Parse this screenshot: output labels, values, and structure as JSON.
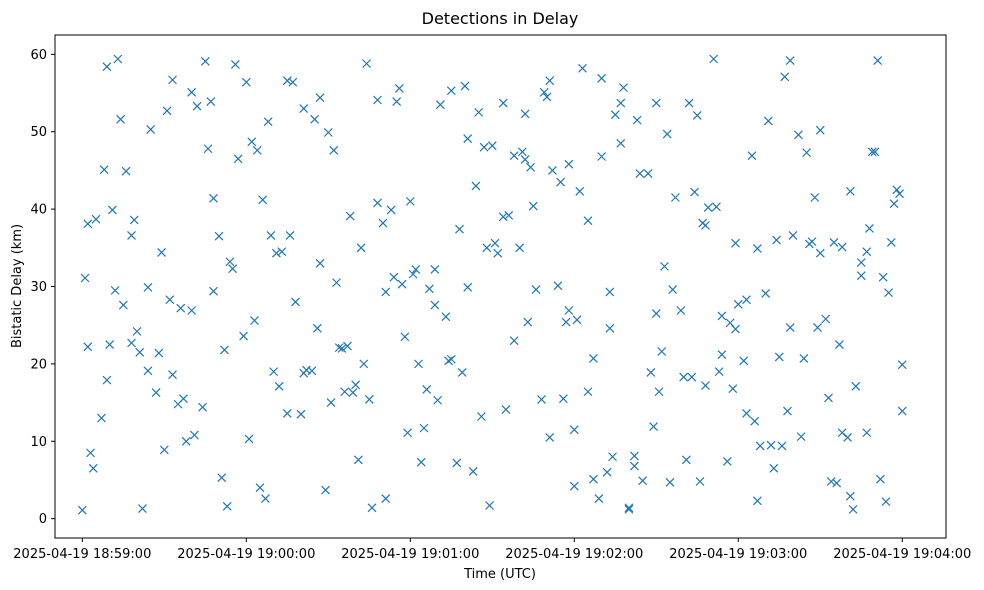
{
  "chart_data": {
    "type": "scatter",
    "title": "Detections in Delay",
    "xlabel": "Time (UTC)",
    "ylabel": "Bistatic Delay (km)",
    "marker": "x",
    "marker_color": "#1f77b4",
    "grid": false,
    "x_unit": "time",
    "xlim": [
      "2025-04-19 18:58:50",
      "2025-04-19 19:04:16"
    ],
    "ylim": [
      -2.5,
      62.5
    ],
    "x_ticks": [
      "2025-04-19 18:59:00",
      "2025-04-19 19:00:00",
      "2025-04-19 19:01:00",
      "2025-04-19 19:02:00",
      "2025-04-19 19:03:00",
      "2025-04-19 19:04:00"
    ],
    "x_tick_labels": [
      "2025-04-19 18:59:00",
      "2025-04-19 19:00:00",
      "2025-04-19 19:01:00",
      "2025-04-19 19:02:00",
      "2025-04-19 19:03:00",
      "2025-04-19 19:04:00"
    ],
    "y_ticks": [
      0,
      10,
      20,
      30,
      40,
      50,
      60
    ],
    "y_tick_labels": [
      "0",
      "10",
      "20",
      "30",
      "40",
      "50",
      "60"
    ],
    "x": [
      "2025-04-19 18:59:00",
      "2025-04-19 18:59:01",
      "2025-04-19 18:59:02",
      "2025-04-19 18:59:02",
      "2025-04-19 18:59:03",
      "2025-04-19 18:59:04",
      "2025-04-19 18:59:05",
      "2025-04-19 18:59:07",
      "2025-04-19 18:59:08",
      "2025-04-19 18:59:09",
      "2025-04-19 18:59:09",
      "2025-04-19 18:59:10",
      "2025-04-19 18:59:11",
      "2025-04-19 18:59:12",
      "2025-04-19 18:59:13",
      "2025-04-19 18:59:14",
      "2025-04-19 18:59:15",
      "2025-04-19 18:59:16",
      "2025-04-19 18:59:18",
      "2025-04-19 18:59:18",
      "2025-04-19 18:59:19",
      "2025-04-19 18:59:20",
      "2025-04-19 18:59:21",
      "2025-04-19 18:59:22",
      "2025-04-19 18:59:24",
      "2025-04-19 18:59:24",
      "2025-04-19 18:59:25",
      "2025-04-19 18:59:27",
      "2025-04-19 18:59:28",
      "2025-04-19 18:59:29",
      "2025-04-19 18:59:30",
      "2025-04-19 18:59:31",
      "2025-04-19 18:59:32",
      "2025-04-19 18:59:33",
      "2025-04-19 18:59:33",
      "2025-04-19 18:59:35",
      "2025-04-19 18:59:36",
      "2025-04-19 18:59:37",
      "2025-04-19 18:59:38",
      "2025-04-19 18:59:40",
      "2025-04-19 18:59:40",
      "2025-04-19 18:59:41",
      "2025-04-19 18:59:42",
      "2025-04-19 18:59:44",
      "2025-04-19 18:59:45",
      "2025-04-19 18:59:46",
      "2025-04-19 18:59:47",
      "2025-04-19 18:59:48",
      "2025-04-19 18:59:48",
      "2025-04-19 18:59:50",
      "2025-04-19 18:59:51",
      "2025-04-19 18:59:52",
      "2025-04-19 18:59:53",
      "2025-04-19 18:59:54",
      "2025-04-19 18:59:55",
      "2025-04-19 18:59:56",
      "2025-04-19 18:59:57",
      "2025-04-19 18:59:59",
      "2025-04-19 19:00:00",
      "2025-04-19 19:00:01",
      "2025-04-19 19:00:02",
      "2025-04-19 19:00:03",
      "2025-04-19 19:00:04",
      "2025-04-19 19:00:05",
      "2025-04-19 19:00:06",
      "2025-04-19 19:00:07",
      "2025-04-19 19:00:08",
      "2025-04-19 19:00:09",
      "2025-04-19 19:00:10",
      "2025-04-19 19:00:11",
      "2025-04-19 19:00:12",
      "2025-04-19 19:00:13",
      "2025-04-19 19:00:15",
      "2025-04-19 19:00:15",
      "2025-04-19 19:00:16",
      "2025-04-19 19:00:17",
      "2025-04-19 19:00:18",
      "2025-04-19 19:00:20",
      "2025-04-19 19:00:21",
      "2025-04-19 19:00:21",
      "2025-04-19 19:00:22",
      "2025-04-19 19:00:24",
      "2025-04-19 19:00:25",
      "2025-04-19 19:00:26",
      "2025-04-19 19:00:27",
      "2025-04-19 19:00:27",
      "2025-04-19 19:00:29",
      "2025-04-19 19:00:30",
      "2025-04-19 19:00:31",
      "2025-04-19 19:00:32",
      "2025-04-19 19:00:33",
      "2025-04-19 19:00:34",
      "2025-04-19 19:00:35",
      "2025-04-19 19:00:36",
      "2025-04-19 19:00:37",
      "2025-04-19 19:00:38",
      "2025-04-19 19:00:39",
      "2025-04-19 19:00:40",
      "2025-04-19 19:00:41",
      "2025-04-19 19:00:42",
      "2025-04-19 19:00:43",
      "2025-04-19 19:00:44",
      "2025-04-19 19:00:45",
      "2025-04-19 19:00:46",
      "2025-04-19 19:00:48",
      "2025-04-19 19:00:48",
      "2025-04-19 19:00:50",
      "2025-04-19 19:00:51",
      "2025-04-19 19:00:51",
      "2025-04-19 19:00:53",
      "2025-04-19 19:00:54",
      "2025-04-19 19:00:55",
      "2025-04-19 19:00:56",
      "2025-04-19 19:00:57",
      "2025-04-19 19:00:58",
      "2025-04-19 19:00:59",
      "2025-04-19 19:01:00",
      "2025-04-19 19:01:01",
      "2025-04-19 19:01:02",
      "2025-04-19 19:01:03",
      "2025-04-19 19:01:04",
      "2025-04-19 19:01:05",
      "2025-04-19 19:01:06",
      "2025-04-19 19:01:07",
      "2025-04-19 19:01:09",
      "2025-04-19 19:01:09",
      "2025-04-19 19:01:10",
      "2025-04-19 19:01:11",
      "2025-04-19 19:01:13",
      "2025-04-19 19:01:14",
      "2025-04-19 19:01:15",
      "2025-04-19 19:01:15",
      "2025-04-19 19:01:17",
      "2025-04-19 19:01:18",
      "2025-04-19 19:01:19",
      "2025-04-19 19:01:20",
      "2025-04-19 19:01:21",
      "2025-04-19 19:01:21",
      "2025-04-19 19:01:23",
      "2025-04-19 19:01:24",
      "2025-04-19 19:01:25",
      "2025-04-19 19:01:26",
      "2025-04-19 19:01:27",
      "2025-04-19 19:01:28",
      "2025-04-19 19:01:29",
      "2025-04-19 19:01:30",
      "2025-04-19 19:01:31",
      "2025-04-19 19:01:32",
      "2025-04-19 19:01:34",
      "2025-04-19 19:01:34",
      "2025-04-19 19:01:35",
      "2025-04-19 19:01:36",
      "2025-04-19 19:01:38",
      "2025-04-19 19:01:38",
      "2025-04-19 19:01:40",
      "2025-04-19 19:01:41",
      "2025-04-19 19:01:42",
      "2025-04-19 19:01:42",
      "2025-04-19 19:01:43",
      "2025-04-19 19:01:44",
      "2025-04-19 19:01:45",
      "2025-04-19 19:01:46",
      "2025-04-19 19:01:48",
      "2025-04-19 19:01:49",
      "2025-04-19 19:01:50",
      "2025-04-19 19:01:51",
      "2025-04-19 19:01:51",
      "2025-04-19 19:01:52",
      "2025-04-19 19:01:54",
      "2025-04-19 19:01:55",
      "2025-04-19 19:01:56",
      "2025-04-19 19:01:57",
      "2025-04-19 19:01:58",
      "2025-04-19 19:01:58",
      "2025-04-19 19:02:00",
      "2025-04-19 19:02:00",
      "2025-04-19 19:02:01",
      "2025-04-19 19:02:02",
      "2025-04-19 19:02:03",
      "2025-04-19 19:02:05",
      "2025-04-19 19:02:05",
      "2025-04-19 19:02:07",
      "2025-04-19 19:02:07",
      "2025-04-19 19:02:09",
      "2025-04-19 19:02:10",
      "2025-04-19 19:02:10",
      "2025-04-19 19:02:12",
      "2025-04-19 19:02:13",
      "2025-04-19 19:02:13",
      "2025-04-19 19:02:14",
      "2025-04-19 19:02:15",
      "2025-04-19 19:02:17",
      "2025-04-19 19:02:17",
      "2025-04-19 19:02:18",
      "2025-04-19 19:02:20",
      "2025-04-19 19:02:20",
      "2025-04-19 19:02:22",
      "2025-04-19 19:02:22",
      "2025-04-19 19:02:23",
      "2025-04-19 19:02:24",
      "2025-04-19 19:02:25",
      "2025-04-19 19:02:27",
      "2025-04-19 19:02:28",
      "2025-04-19 19:02:29",
      "2025-04-19 19:02:30",
      "2025-04-19 19:02:30",
      "2025-04-19 19:02:31",
      "2025-04-19 19:02:32",
      "2025-04-19 19:02:33",
      "2025-04-19 19:02:34",
      "2025-04-19 19:02:35",
      "2025-04-19 19:02:36",
      "2025-04-19 19:02:37",
      "2025-04-19 19:02:39",
      "2025-04-19 19:02:40",
      "2025-04-19 19:02:41",
      "2025-04-19 19:02:42",
      "2025-04-19 19:02:43",
      "2025-04-19 19:02:44",
      "2025-04-19 19:02:45",
      "2025-04-19 19:02:46",
      "2025-04-19 19:02:47",
      "2025-04-19 19:02:48",
      "2025-04-19 19:02:48",
      "2025-04-19 19:02:49",
      "2025-04-19 19:02:51",
      "2025-04-19 19:02:52",
      "2025-04-19 19:02:53",
      "2025-04-19 19:02:54",
      "2025-04-19 19:02:54",
      "2025-04-19 19:02:56",
      "2025-04-19 19:02:57",
      "2025-04-19 19:02:58",
      "2025-04-19 19:02:59",
      "2025-04-19 19:02:59",
      "2025-04-19 19:03:00",
      "2025-04-19 19:03:02",
      "2025-04-19 19:03:03",
      "2025-04-19 19:03:03",
      "2025-04-19 19:03:05",
      "2025-04-19 19:03:06",
      "2025-04-19 19:03:07",
      "2025-04-19 19:03:07",
      "2025-04-19 19:03:08",
      "2025-04-19 19:03:10",
      "2025-04-19 19:03:11",
      "2025-04-19 19:03:12",
      "2025-04-19 19:03:13",
      "2025-04-19 19:03:14",
      "2025-04-19 19:03:15",
      "2025-04-19 19:03:16",
      "2025-04-19 19:03:17",
      "2025-04-19 19:03:18",
      "2025-04-19 19:03:19",
      "2025-04-19 19:03:19",
      "2025-04-19 19:03:20",
      "2025-04-19 19:03:22",
      "2025-04-19 19:03:23",
      "2025-04-19 19:03:24",
      "2025-04-19 19:03:25",
      "2025-04-19 19:03:26",
      "2025-04-19 19:03:27",
      "2025-04-19 19:03:28",
      "2025-04-19 19:03:29",
      "2025-04-19 19:03:30",
      "2025-04-19 19:03:30",
      "2025-04-19 19:03:32",
      "2025-04-19 19:03:33",
      "2025-04-19 19:03:34",
      "2025-04-19 19:03:35",
      "2025-04-19 19:03:36",
      "2025-04-19 19:03:37",
      "2025-04-19 19:03:38",
      "2025-04-19 19:03:38",
      "2025-04-19 19:03:40",
      "2025-04-19 19:03:41",
      "2025-04-19 19:03:41",
      "2025-04-19 19:03:42",
      "2025-04-19 19:03:43",
      "2025-04-19 19:03:45",
      "2025-04-19 19:03:45",
      "2025-04-19 19:03:47",
      "2025-04-19 19:03:47",
      "2025-04-19 19:03:48",
      "2025-04-19 19:03:49",
      "2025-04-19 19:03:50",
      "2025-04-19 19:03:51",
      "2025-04-19 19:03:52",
      "2025-04-19 19:03:53",
      "2025-04-19 19:03:54",
      "2025-04-19 19:03:55",
      "2025-04-19 19:03:56",
      "2025-04-19 19:03:57",
      "2025-04-19 19:03:58",
      "2025-04-19 19:03:59",
      "2025-04-19 19:04:00",
      "2025-04-19 19:04:00"
    ],
    "y": [
      1.1,
      31.1,
      22.2,
      38.1,
      8.5,
      6.5,
      38.7,
      13.0,
      45.1,
      58.4,
      17.9,
      22.5,
      39.9,
      29.5,
      59.4,
      51.6,
      27.6,
      44.9,
      36.6,
      22.7,
      38.6,
      24.2,
      21.5,
      1.3,
      19.1,
      29.9,
      50.3,
      16.3,
      21.4,
      34.4,
      8.9,
      52.7,
      28.3,
      18.6,
      56.7,
      14.8,
      27.2,
      15.5,
      10.0,
      55.1,
      26.9,
      10.8,
      53.3,
      14.4,
      59.1,
      47.8,
      53.9,
      41.4,
      29.4,
      36.5,
      5.3,
      21.8,
      1.6,
      33.2,
      32.3,
      58.7,
      46.5,
      23.6,
      56.4,
      10.3,
      48.7,
      25.6,
      47.6,
      4.0,
      41.2,
      2.6,
      51.3,
      36.6,
      19.0,
      34.3,
      17.1,
      34.5,
      13.6,
      56.6,
      36.6,
      56.4,
      28.0,
      13.5,
      53.0,
      18.8,
      19.2,
      19.1,
      51.6,
      24.6,
      54.4,
      33.0,
      3.7,
      49.9,
      15.0,
      47.6,
      30.5,
      22.1,
      22.0,
      16.4,
      22.3,
      39.1,
      16.3,
      17.3,
      7.6,
      35.0,
      20.0,
      58.8,
      15.4,
      1.4,
      54.1,
      40.8,
      38.2,
      2.6,
      29.3,
      39.9,
      31.2,
      53.9,
      55.6,
      30.3,
      23.5,
      11.1,
      41.0,
      31.6,
      32.2,
      20.0,
      7.3,
      11.7,
      16.7,
      29.7,
      32.2,
      27.6,
      15.3,
      53.5,
      26.1,
      20.4,
      20.6,
      55.3,
      7.2,
      37.4,
      18.9,
      55.9,
      49.1,
      29.9,
      6.1,
      43.0,
      52.5,
      13.2,
      48.0,
      35.0,
      1.7,
      48.2,
      35.6,
      34.3,
      39.0,
      53.7,
      14.1,
      39.2,
      23.0,
      46.9,
      35.0,
      47.4,
      52.3,
      46.4,
      25.4,
      45.4,
      40.4,
      29.6,
      15.4,
      55.1,
      54.5,
      10.5,
      56.6,
      45.0,
      30.1,
      43.5,
      15.5,
      25.4,
      26.9,
      45.8,
      11.5,
      4.2,
      25.7,
      42.3,
      58.2,
      16.4,
      38.5,
      20.7,
      5.1,
      2.6,
      56.9,
      46.8,
      6.0,
      24.6,
      29.3,
      8.0,
      52.2,
      53.7,
      48.5,
      55.7,
      1.2,
      1.4,
      8.1,
      6.8,
      51.5,
      44.6,
      4.9,
      44.6,
      18.9,
      11.9,
      53.7,
      26.5,
      16.4,
      21.6,
      32.6,
      49.7,
      4.7,
      29.6,
      41.5,
      26.9,
      18.3,
      7.6,
      53.7,
      18.3,
      42.2,
      52.1,
      4.8,
      38.2,
      37.9,
      17.2,
      40.2,
      59.4,
      40.3,
      19.0,
      21.2,
      26.2,
      7.4,
      25.3,
      16.8,
      24.5,
      35.6,
      27.7,
      20.4,
      13.6,
      28.3,
      46.9,
      12.6,
      34.9,
      2.3,
      9.4,
      29.1,
      51.4,
      9.5,
      6.5,
      36.0,
      20.9,
      9.4,
      57.1,
      13.9,
      59.2,
      24.7,
      36.6,
      49.6,
      10.6,
      20.7,
      47.3,
      35.5,
      35.8,
      41.5,
      24.7,
      50.2,
      34.3,
      25.8,
      15.6,
      4.8,
      35.7,
      4.6,
      22.5,
      11.1,
      35.1,
      10.5,
      42.3,
      2.9,
      1.2,
      17.1,
      31.4,
      33.1,
      34.5,
      11.1,
      37.5,
      47.4,
      47.4,
      59.2,
      5.1,
      31.2,
      2.2,
      29.2,
      35.7,
      40.7,
      42.5,
      42.0,
      13.9,
      19.9
    ]
  }
}
